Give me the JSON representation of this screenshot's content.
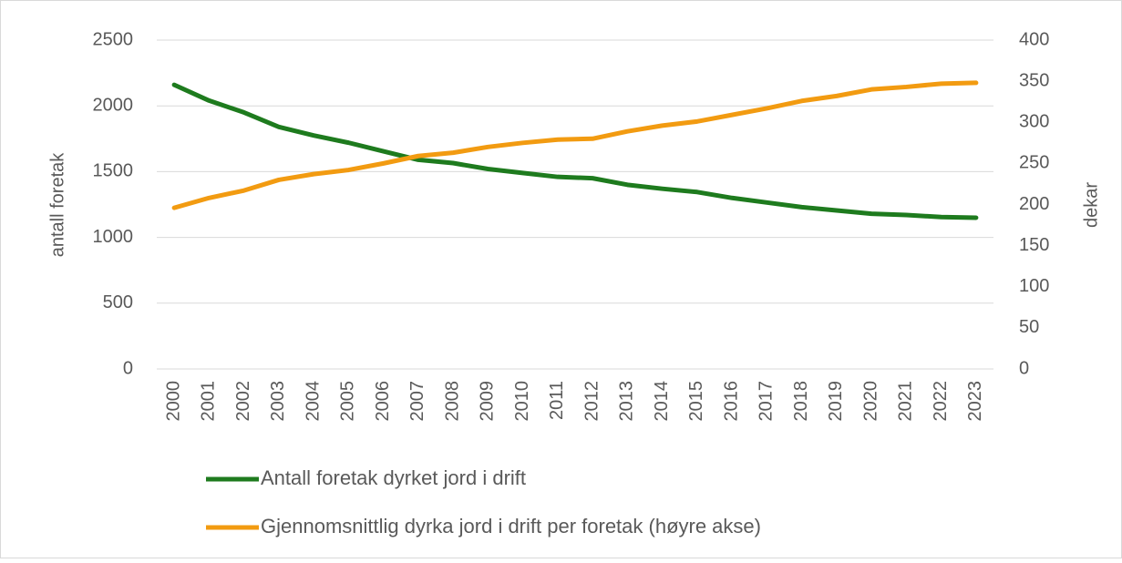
{
  "chart_data": {
    "type": "line",
    "ylabel": "antall foretak",
    "y2label": "dekar",
    "categories": [
      "2000",
      "2001",
      "2002",
      "2003",
      "2004",
      "2005",
      "2006",
      "2007",
      "2008",
      "2009",
      "2010",
      "2011",
      "2012",
      "2013",
      "2014",
      "2015",
      "2016",
      "2017",
      "2018",
      "2019",
      "2020",
      "2021",
      "2022",
      "2023"
    ],
    "series": [
      {
        "name": "Antall foretak dyrket jord i drift",
        "color": "#1e7b1e",
        "values": [
          2160,
          2040,
          1950,
          1840,
          1775,
          1720,
          1655,
          1590,
          1565,
          1520,
          1490,
          1460,
          1450,
          1400,
          1370,
          1345,
          1300,
          1265,
          1230,
          1205,
          1180,
          1170,
          1155,
          1150
        ]
      },
      {
        "name": "Gjennomsnittlig dyrka jord i drift per foretak (høyre akse)",
        "color": "#f29b11",
        "axis": "y2",
        "values": [
          196,
          208,
          217,
          230,
          237,
          242,
          250,
          259,
          263,
          270,
          275,
          279,
          280,
          289,
          296,
          301,
          309,
          317,
          326,
          332,
          340,
          343,
          347,
          348
        ]
      }
    ],
    "ylim": [
      0,
      2500
    ],
    "yticks": [
      0,
      500,
      1000,
      1500,
      2000,
      2500
    ],
    "y2lim": [
      0,
      400
    ],
    "y2ticks": [
      0,
      50,
      100,
      150,
      200,
      250,
      300,
      350,
      400
    ],
    "grid": true,
    "legend": "bottom"
  }
}
